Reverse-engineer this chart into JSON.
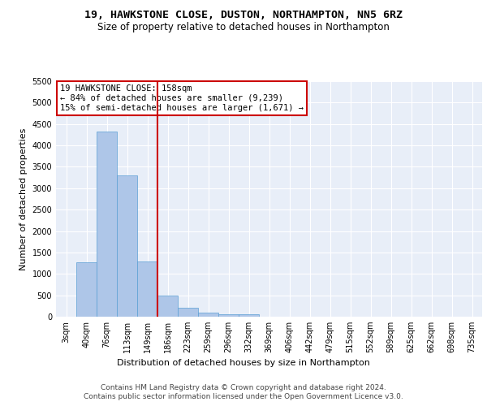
{
  "title_line1": "19, HAWKSTONE CLOSE, DUSTON, NORTHAMPTON, NN5 6RZ",
  "title_line2": "Size of property relative to detached houses in Northampton",
  "xlabel": "Distribution of detached houses by size in Northampton",
  "ylabel": "Number of detached properties",
  "footer_line1": "Contains HM Land Registry data © Crown copyright and database right 2024.",
  "footer_line2": "Contains public sector information licensed under the Open Government Licence v3.0.",
  "annotation_title": "19 HAWKSTONE CLOSE: 158sqm",
  "annotation_line1": "← 84% of detached houses are smaller (9,239)",
  "annotation_line2": "15% of semi-detached houses are larger (1,671) →",
  "bar_labels": [
    "3sqm",
    "40sqm",
    "76sqm",
    "113sqm",
    "149sqm",
    "186sqm",
    "223sqm",
    "259sqm",
    "296sqm",
    "332sqm",
    "369sqm",
    "406sqm",
    "442sqm",
    "479sqm",
    "515sqm",
    "552sqm",
    "589sqm",
    "625sqm",
    "662sqm",
    "698sqm",
    "735sqm"
  ],
  "bar_values": [
    0,
    1270,
    4330,
    3300,
    1290,
    490,
    215,
    95,
    65,
    55,
    0,
    0,
    0,
    0,
    0,
    0,
    0,
    0,
    0,
    0,
    0
  ],
  "bar_color": "#aec6e8",
  "bar_edgecolor": "#5a9fd4",
  "highlight_bar_index": 4,
  "highlight_color": "#cc0000",
  "ylim": [
    0,
    5500
  ],
  "yticks": [
    0,
    500,
    1000,
    1500,
    2000,
    2500,
    3000,
    3500,
    4000,
    4500,
    5000,
    5500
  ],
  "bg_color": "#e8eef8",
  "grid_color": "#ffffff",
  "title_fontsize": 9.5,
  "subtitle_fontsize": 8.5,
  "axis_label_fontsize": 8,
  "tick_fontsize": 7,
  "footer_fontsize": 6.5,
  "annotation_fontsize": 7.5
}
